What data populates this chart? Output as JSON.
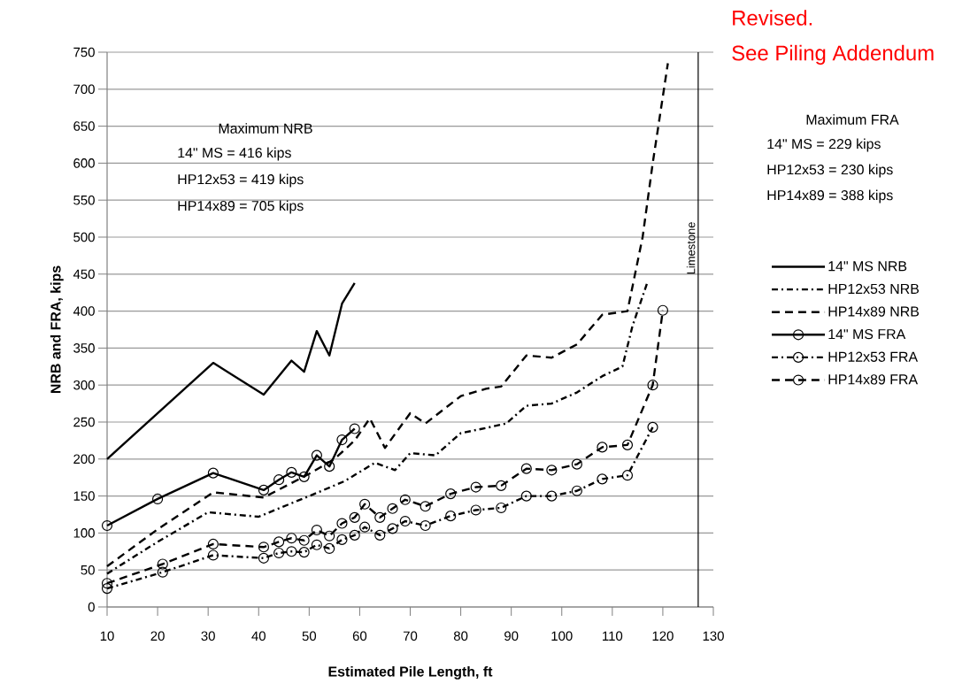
{
  "chart_data": {
    "type": "line",
    "xlabel": "Estimated Pile Length, ft",
    "ylabel": "NRB and FRA, kips",
    "xlim": [
      10,
      130
    ],
    "xticks": [
      10,
      20,
      30,
      40,
      50,
      60,
      70,
      80,
      90,
      100,
      110,
      120,
      130
    ],
    "ylim": [
      0,
      750
    ],
    "yticks": [
      0,
      50,
      100,
      150,
      200,
      250,
      300,
      350,
      400,
      450,
      500,
      550,
      600,
      650,
      700,
      750
    ],
    "grid": "y",
    "legend": "right",
    "ref_lines": [
      {
        "axis": "x",
        "value": 127,
        "label": "Limestone",
        "color": "#000000"
      }
    ],
    "annotations": [
      "Maximum NRB",
      "14\" MS = 416 kips",
      "HP12x53 = 419 kips",
      "HP14x89 = 705 kips",
      "Maximum FRA",
      "14\" MS = 229 kips",
      "HP12x53 = 230 kips",
      "HP14x89 = 388 kips",
      "Revised.",
      "See Piling Addendum"
    ],
    "series": [
      {
        "name": "14\" MS NRB",
        "color": "#000000",
        "line_style": "solid",
        "marker": "none",
        "x": [
          10,
          31,
          41,
          46.5,
          49,
          51.5,
          54,
          56.5,
          59
        ],
        "values": [
          200,
          330,
          287,
          333,
          318,
          373,
          340,
          410,
          438
        ]
      },
      {
        "name": "HP12x53 NRB",
        "color": "#000000",
        "line_style": "dashdot",
        "marker": "none",
        "x": [
          10,
          20,
          30,
          40,
          50,
          57,
          63,
          67,
          70,
          75,
          80,
          85,
          89,
          93,
          98,
          103,
          108,
          112,
          114,
          117
        ],
        "values": [
          45,
          88,
          128,
          122,
          150,
          170,
          195,
          185,
          208,
          205,
          235,
          242,
          248,
          272,
          275,
          290,
          312,
          325,
          380,
          440
        ]
      },
      {
        "name": "HP14x89 NRB",
        "color": "#000000",
        "line_style": "dashed",
        "marker": "none",
        "x": [
          10,
          20,
          31,
          41,
          50,
          55,
          59,
          62,
          65,
          70,
          73,
          80,
          85,
          88,
          93,
          98,
          103,
          108,
          113,
          116,
          118,
          121
        ],
        "values": [
          55,
          105,
          155,
          148,
          180,
          200,
          225,
          255,
          215,
          262,
          248,
          285,
          295,
          298,
          340,
          337,
          355,
          395,
          400,
          500,
          600,
          735
        ]
      },
      {
        "name": "14\" MS FRA",
        "color": "#000000",
        "line_style": "solid",
        "marker": "circle",
        "x": [
          10,
          20,
          31,
          41,
          44,
          46.5,
          49,
          51.5,
          54,
          56.5,
          59
        ],
        "values": [
          110,
          146,
          181,
          158,
          172,
          182,
          176,
          205,
          190,
          226,
          241
        ]
      },
      {
        "name": "HP12x53 FRA",
        "color": "#000000",
        "line_style": "dashdot",
        "marker": "circle",
        "x": [
          10,
          21,
          31,
          41,
          44,
          46.5,
          49,
          51.5,
          54,
          56.5,
          59,
          61,
          64,
          66.5,
          69,
          73,
          78,
          83,
          88,
          93,
          98,
          103,
          108,
          113,
          118
        ],
        "values": [
          25,
          47,
          70,
          66,
          73,
          75,
          74,
          84,
          79,
          91,
          97,
          108,
          97,
          106,
          116,
          110,
          123,
          131,
          134,
          150,
          150,
          157,
          173,
          178,
          243
        ]
      },
      {
        "name": "HP14x89 FRA",
        "color": "#000000",
        "line_style": "dashed",
        "marker": "circle",
        "x": [
          10,
          21,
          31,
          41,
          44,
          46.5,
          49,
          51.5,
          54,
          56.5,
          59,
          61,
          64,
          66.5,
          69,
          73,
          78,
          83,
          88,
          93,
          98,
          103,
          108,
          113,
          118,
          120
        ],
        "values": [
          32,
          58,
          85,
          81,
          88,
          93,
          90,
          104,
          96,
          113,
          121,
          139,
          121,
          133,
          145,
          136,
          153,
          162,
          164,
          187,
          185,
          193,
          216,
          219,
          300,
          401
        ]
      }
    ]
  }
}
